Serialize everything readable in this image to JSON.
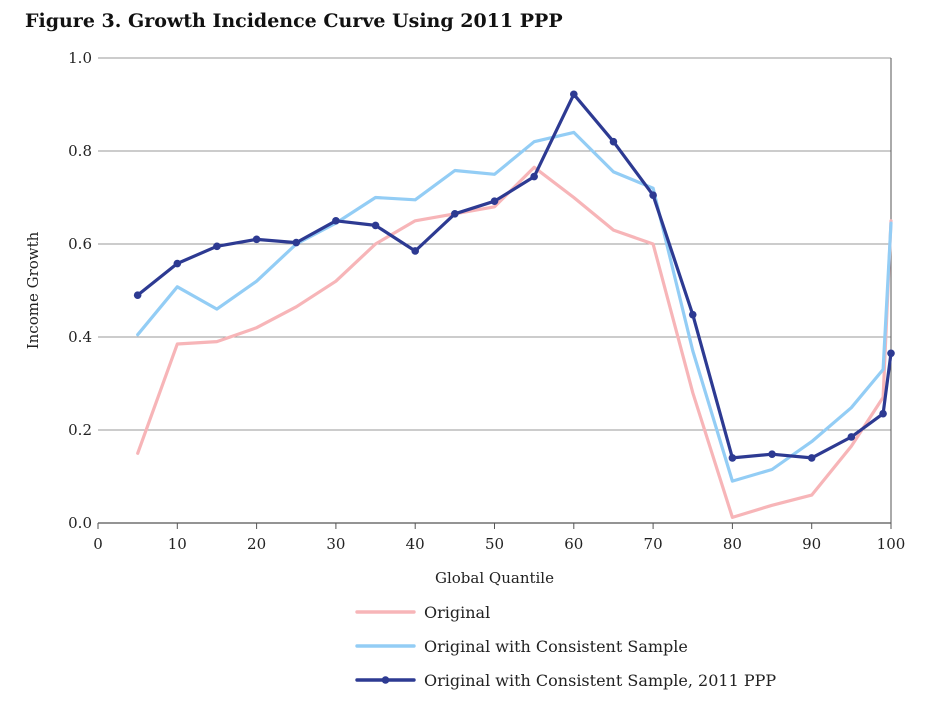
{
  "chart_data": {
    "type": "line",
    "title": "Figure 3. Growth Incidence Curve Using 2011 PPP",
    "xlabel": "Global Quantile",
    "ylabel": "Income Growth",
    "xlim": [
      0,
      100
    ],
    "ylim": [
      0,
      1.0
    ],
    "xticks": [
      "0",
      "10",
      "20",
      "30",
      "40",
      "50",
      "60",
      "70",
      "80",
      "90",
      "100"
    ],
    "yticks": [
      "0.0",
      "0.2",
      "0.4",
      "0.6",
      "0.8",
      "1.0"
    ],
    "grid": "horizontal",
    "legend_position": "bottom",
    "series": [
      {
        "name": "Original",
        "color": "#f7b5b8",
        "markers": false,
        "x": [
          5,
          10,
          15,
          20,
          25,
          30,
          35,
          40,
          45,
          50,
          55,
          60,
          65,
          70,
          75,
          80,
          85,
          90,
          95,
          99,
          100
        ],
        "y": [
          0.15,
          0.385,
          0.39,
          0.42,
          0.465,
          0.52,
          0.6,
          0.65,
          0.665,
          0.68,
          0.765,
          0.7,
          0.63,
          0.6,
          0.28,
          0.012,
          0.038,
          0.06,
          0.165,
          0.27,
          0.65
        ]
      },
      {
        "name": "Original with Consistent Sample",
        "color": "#93cdf5",
        "markers": false,
        "x": [
          5,
          10,
          15,
          20,
          25,
          30,
          35,
          40,
          45,
          50,
          55,
          60,
          65,
          70,
          75,
          80,
          85,
          90,
          95,
          99,
          100
        ],
        "y": [
          0.405,
          0.508,
          0.46,
          0.52,
          0.6,
          0.645,
          0.7,
          0.695,
          0.758,
          0.75,
          0.82,
          0.84,
          0.755,
          0.72,
          0.37,
          0.09,
          0.115,
          0.175,
          0.248,
          0.33,
          0.645
        ]
      },
      {
        "name": "Original with Consistent Sample, 2011 PPP",
        "color": "#2d3a92",
        "markers": true,
        "x": [
          5,
          10,
          15,
          20,
          25,
          30,
          35,
          40,
          45,
          50,
          55,
          60,
          65,
          70,
          75,
          80,
          85,
          90,
          95,
          99,
          100
        ],
        "y": [
          0.49,
          0.558,
          0.595,
          0.61,
          0.603,
          0.65,
          0.64,
          0.585,
          0.665,
          0.692,
          0.745,
          0.922,
          0.82,
          0.705,
          0.448,
          0.14,
          0.148,
          0.14,
          0.185,
          0.235,
          0.365
        ]
      }
    ]
  }
}
